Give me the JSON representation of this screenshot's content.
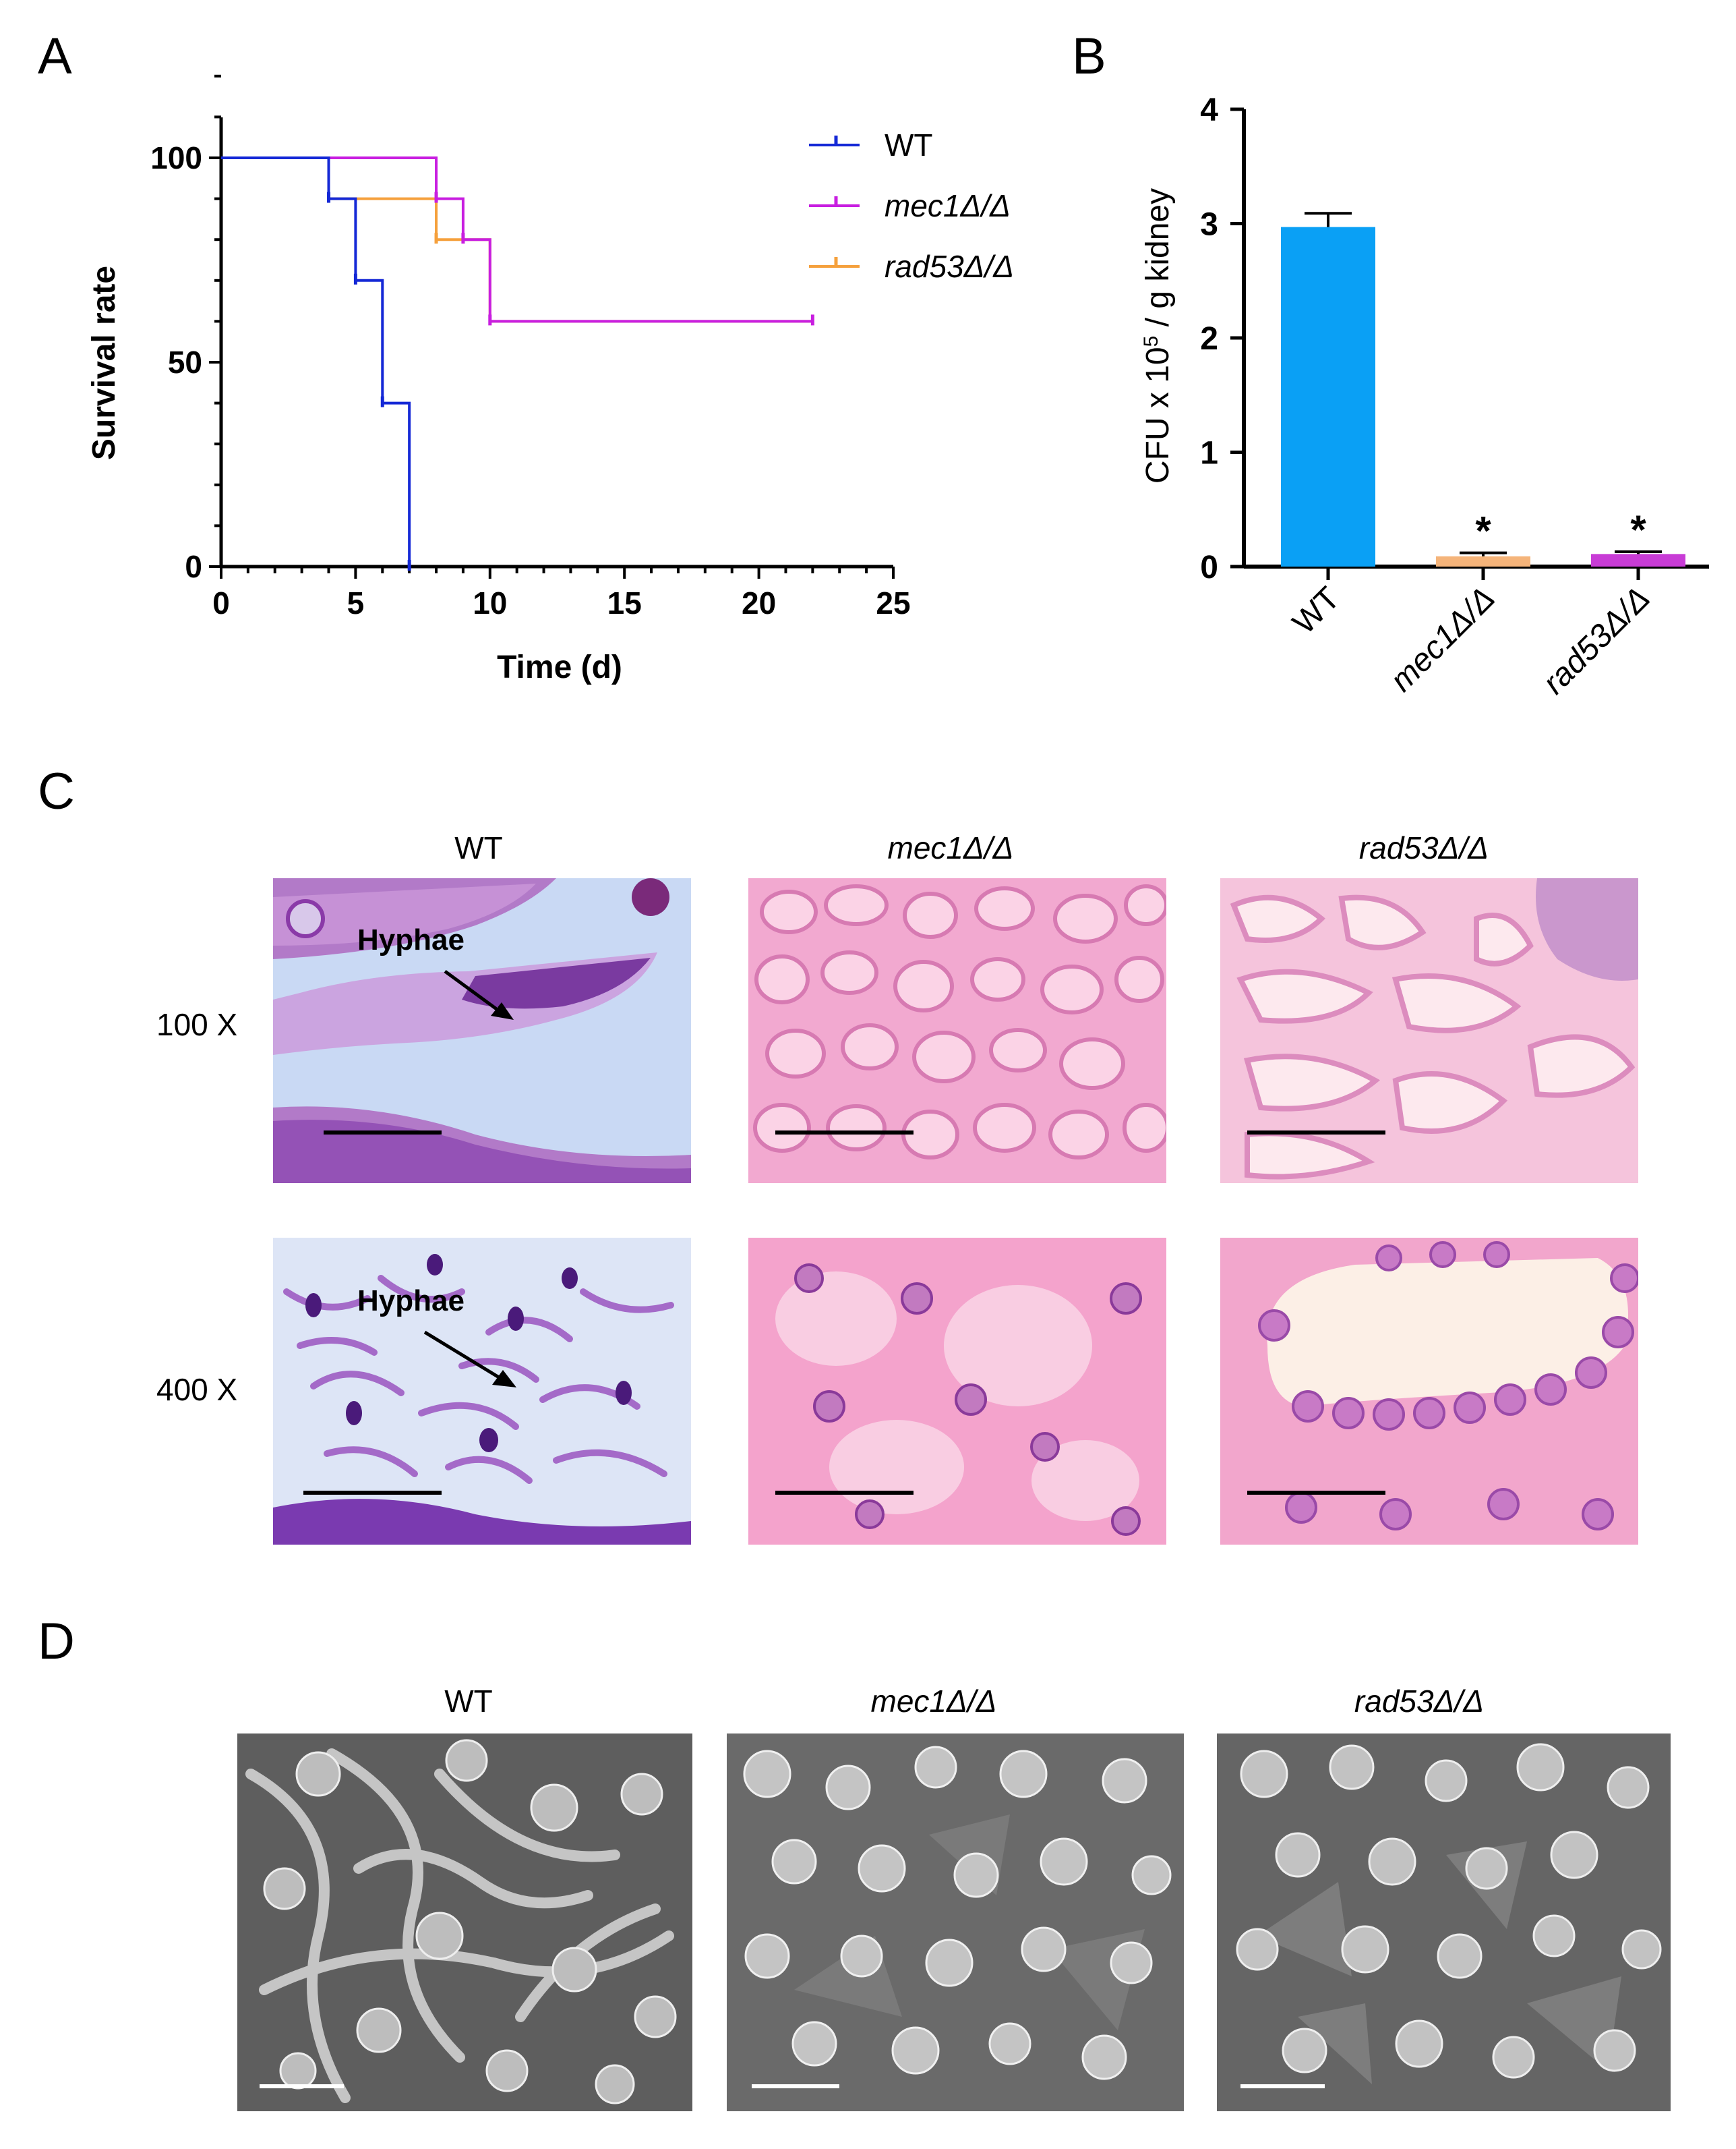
{
  "panels": {
    "a": "A",
    "b": "B",
    "c": "C",
    "d": "D"
  },
  "chart_data": [
    {
      "type": "line",
      "subtype": "kaplan-meier survival",
      "xlabel": "Time (d)",
      "ylabel": "Survival rate",
      "xlim": [
        0,
        25
      ],
      "ylim": [
        0,
        100
      ],
      "xticks": [
        "0",
        "5",
        "10",
        "15",
        "20",
        "25"
      ],
      "yticks": [
        "0",
        "50",
        "100"
      ],
      "legend_position": "top-right",
      "series": [
        {
          "name": "WT",
          "color": "#1428d6",
          "steps": [
            [
              0,
              100
            ],
            [
              4,
              90
            ],
            [
              5,
              70
            ],
            [
              6,
              40
            ],
            [
              7,
              0
            ]
          ],
          "censor": [
            [
              4,
              90
            ],
            [
              5,
              70
            ],
            [
              6,
              40
            ],
            [
              7,
              0
            ]
          ]
        },
        {
          "name": "mec1Δ/Δ",
          "color": "#c81ee0",
          "steps": [
            [
              0,
              100
            ],
            [
              8,
              90
            ],
            [
              9,
              80
            ],
            [
              10,
              60
            ],
            [
              22,
              60
            ]
          ],
          "censor": [
            [
              8,
              90
            ],
            [
              9,
              80
            ],
            [
              10,
              60
            ],
            [
              22,
              60
            ]
          ]
        },
        {
          "name": "rad53Δ/Δ",
          "color": "#f5a03c",
          "steps": [
            [
              0,
              100
            ],
            [
              4,
              90
            ],
            [
              8,
              80
            ],
            [
              9,
              80
            ],
            [
              10,
              60
            ],
            [
              22,
              60
            ]
          ],
          "censor": [
            [
              8,
              80
            ]
          ]
        }
      ]
    },
    {
      "type": "bar",
      "ylabel": "CFU x 10^5 / g kidney",
      "ylabel_parts": [
        "CFU x 10",
        "5",
        " / g kidney"
      ],
      "ylim": [
        0,
        4
      ],
      "yticks": [
        "0",
        "1",
        "2",
        "3",
        "4"
      ],
      "categories": [
        "WT",
        "mec1Δ/Δ",
        "rad53Δ/Δ"
      ],
      "values": [
        2.97,
        0.09,
        0.11
      ],
      "errors": [
        0.12,
        0.03,
        0.02
      ],
      "colors": [
        "#0aa0f5",
        "#f5b47a",
        "#c83cd6"
      ],
      "significance": [
        "",
        "*",
        "*"
      ]
    }
  ],
  "panel_c": {
    "columns": [
      "WT",
      "mec1Δ/Δ",
      "rad53Δ/Δ"
    ],
    "rows": [
      "100 X",
      "400 X"
    ],
    "annotation": "Hyphae"
  },
  "panel_d": {
    "columns": [
      "WT",
      "mec1Δ/Δ",
      "rad53Δ/Δ"
    ]
  }
}
